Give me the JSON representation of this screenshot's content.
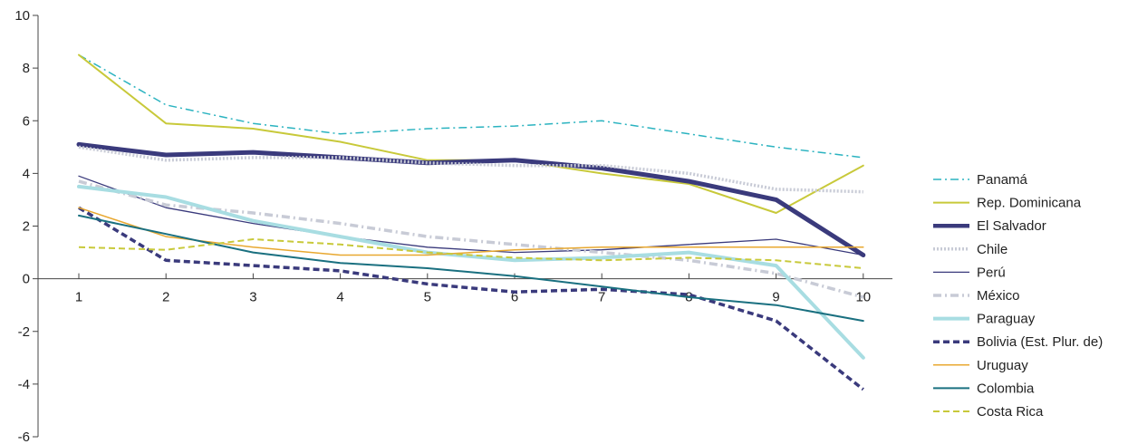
{
  "chart_data": {
    "type": "line",
    "title": "",
    "xlabel": "",
    "ylabel": "",
    "x": [
      1,
      2,
      3,
      4,
      5,
      6,
      7,
      8,
      9,
      10
    ],
    "x_tick_labels": [
      "1",
      "2",
      "3",
      "4",
      "5",
      "6",
      "7",
      "8",
      "9",
      "10"
    ],
    "ylim": [
      -6,
      10
    ],
    "y_ticks": [
      -6,
      -4,
      -2,
      0,
      2,
      4,
      6,
      8,
      10
    ],
    "y_tick_labels": [
      "-6",
      "-4",
      "-2",
      "0",
      "2",
      "4",
      "6",
      "8",
      "10"
    ],
    "grid": false,
    "legend_position": "right",
    "series": [
      {
        "name": "Panamá",
        "color": "#2bb3c0",
        "style": "dashdot",
        "width": 1.5,
        "values": [
          8.5,
          6.6,
          5.9,
          5.5,
          5.7,
          5.8,
          6.0,
          5.5,
          5.0,
          4.6
        ]
      },
      {
        "name": "Rep. Dominicana",
        "color": "#c8c93a",
        "style": "solid",
        "width": 2,
        "values": [
          8.5,
          5.9,
          5.7,
          5.2,
          4.5,
          4.5,
          4.0,
          3.6,
          2.5,
          4.3
        ]
      },
      {
        "name": "El Salvador",
        "color": "#3a3a7c",
        "style": "solid",
        "width": 5,
        "values": [
          5.1,
          4.7,
          4.8,
          4.6,
          4.4,
          4.5,
          4.2,
          3.7,
          3.0,
          0.9
        ]
      },
      {
        "name": "Chile",
        "color": "#c8cbd6",
        "style": "dotted",
        "width": 3.5,
        "values": [
          5.0,
          4.5,
          4.6,
          4.6,
          4.4,
          4.3,
          4.3,
          4.0,
          3.4,
          3.3
        ]
      },
      {
        "name": "Perú",
        "color": "#3a3a7c",
        "style": "solid",
        "width": 1.3,
        "values": [
          3.9,
          2.7,
          2.1,
          1.6,
          1.2,
          1.0,
          1.1,
          1.3,
          1.5,
          0.9
        ]
      },
      {
        "name": "México",
        "color": "#c8cbd6",
        "style": "dashdot",
        "width": 3.5,
        "values": [
          3.7,
          2.8,
          2.5,
          2.1,
          1.6,
          1.3,
          1.0,
          0.7,
          0.2,
          -0.7
        ]
      },
      {
        "name": "Paraguay",
        "color": "#a8dde2",
        "style": "solid",
        "width": 4,
        "values": [
          3.5,
          3.1,
          2.2,
          1.6,
          1.0,
          0.7,
          0.8,
          1.0,
          0.5,
          -3.0
        ]
      },
      {
        "name": "Bolivia (Est. Plur. de)",
        "color": "#3a3a7c",
        "style": "dashed",
        "width": 3.5,
        "values": [
          2.7,
          0.7,
          0.5,
          0.3,
          -0.2,
          -0.5,
          -0.4,
          -0.6,
          -1.6,
          -4.2
        ]
      },
      {
        "name": "Uruguay",
        "color": "#e8a830",
        "style": "solid",
        "width": 1.5,
        "values": [
          2.7,
          1.6,
          1.2,
          0.9,
          0.9,
          1.1,
          1.2,
          1.2,
          1.2,
          1.2
        ]
      },
      {
        "name": "Colombia",
        "color": "#1a7080",
        "style": "solid",
        "width": 2,
        "values": [
          2.4,
          1.7,
          1.0,
          0.6,
          0.4,
          0.1,
          -0.3,
          -0.7,
          -1.0,
          -1.6
        ]
      },
      {
        "name": "Costa Rica",
        "color": "#c8c93a",
        "style": "dashed",
        "width": 2,
        "values": [
          1.2,
          1.1,
          1.5,
          1.3,
          1.0,
          0.8,
          0.7,
          0.8,
          0.7,
          0.4
        ]
      }
    ]
  }
}
